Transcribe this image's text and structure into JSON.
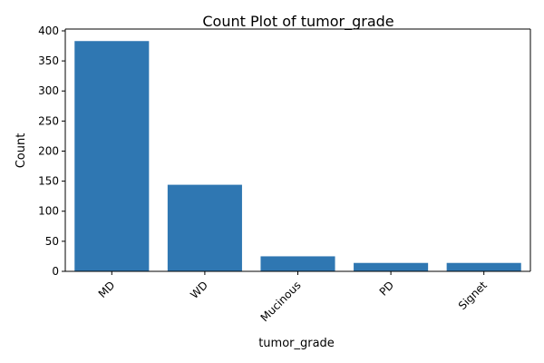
{
  "chart_data": {
    "type": "bar",
    "title": "Count Plot of tumor_grade",
    "xlabel": "tumor_grade",
    "ylabel": "Count",
    "categories": [
      "MD",
      "WD",
      "Mucinous",
      "PD",
      "Signet"
    ],
    "values": [
      383,
      144,
      25,
      14,
      14
    ],
    "ylim": [
      0,
      403
    ],
    "yticks": [
      0,
      50,
      100,
      150,
      200,
      250,
      300,
      350,
      400
    ],
    "bar_color": "#2f77b2",
    "grid": false,
    "legend": "none"
  }
}
